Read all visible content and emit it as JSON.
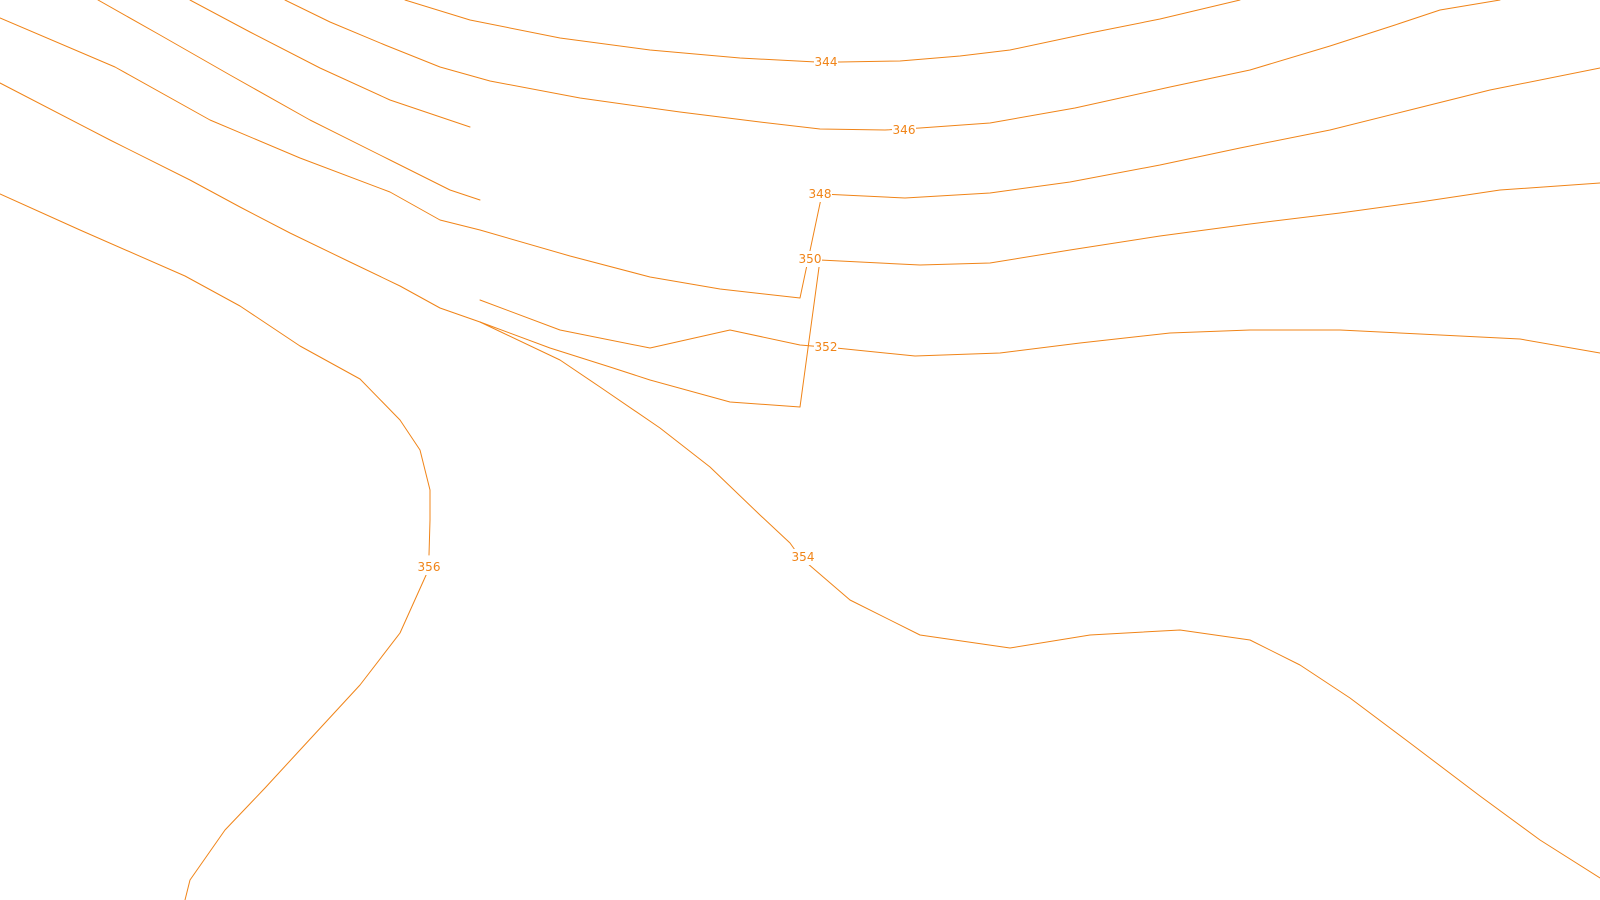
{
  "map": {
    "background_color": "#ffffff",
    "contour_color": "#f08418",
    "contours": [
      {
        "id": "c340",
        "elevation": null
      },
      {
        "id": "c342",
        "elevation": null
      },
      {
        "id": "c344",
        "elevation": 344,
        "label": "344"
      },
      {
        "id": "c346",
        "elevation": 346,
        "label": "346"
      },
      {
        "id": "c348",
        "elevation": 348,
        "label": "348"
      },
      {
        "id": "c350",
        "elevation": 350,
        "label": "350"
      },
      {
        "id": "c352",
        "elevation": 352,
        "label": "352"
      },
      {
        "id": "c354",
        "elevation": 354,
        "label": "354"
      },
      {
        "id": "c356",
        "elevation": 356,
        "label": "356"
      }
    ]
  }
}
